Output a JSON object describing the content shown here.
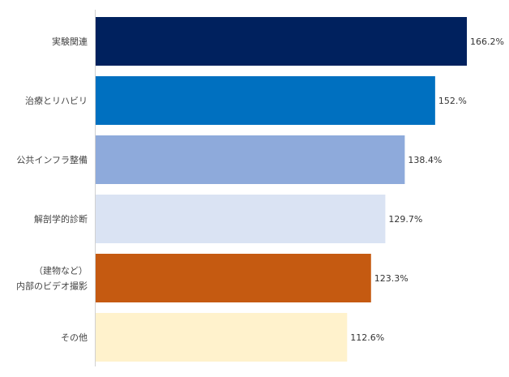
{
  "chart_data": {
    "type": "bar",
    "orientation": "horizontal",
    "categories": [
      [
        "実験関連"
      ],
      [
        "治療とリハビリ"
      ],
      [
        "公共インフラ整備"
      ],
      [
        "解剖学的診断"
      ],
      [
        "（建物など）",
        "内部のビデオ撮影"
      ],
      [
        "その他"
      ]
    ],
    "values": [
      166.2,
      152,
      138.4,
      129.7,
      123.3,
      112.6
    ],
    "value_labels": [
      "166.2%",
      "152.%",
      "138.4%",
      "129.7%",
      "123.3%",
      "112.6%"
    ],
    "colors": [
      "#00215E",
      "#0070C0",
      "#8EAADB",
      "#DAE3F3",
      "#C55A11",
      "#FFF2CC"
    ],
    "xlim": [
      0,
      166.2
    ],
    "grid": false,
    "legend": "none"
  }
}
